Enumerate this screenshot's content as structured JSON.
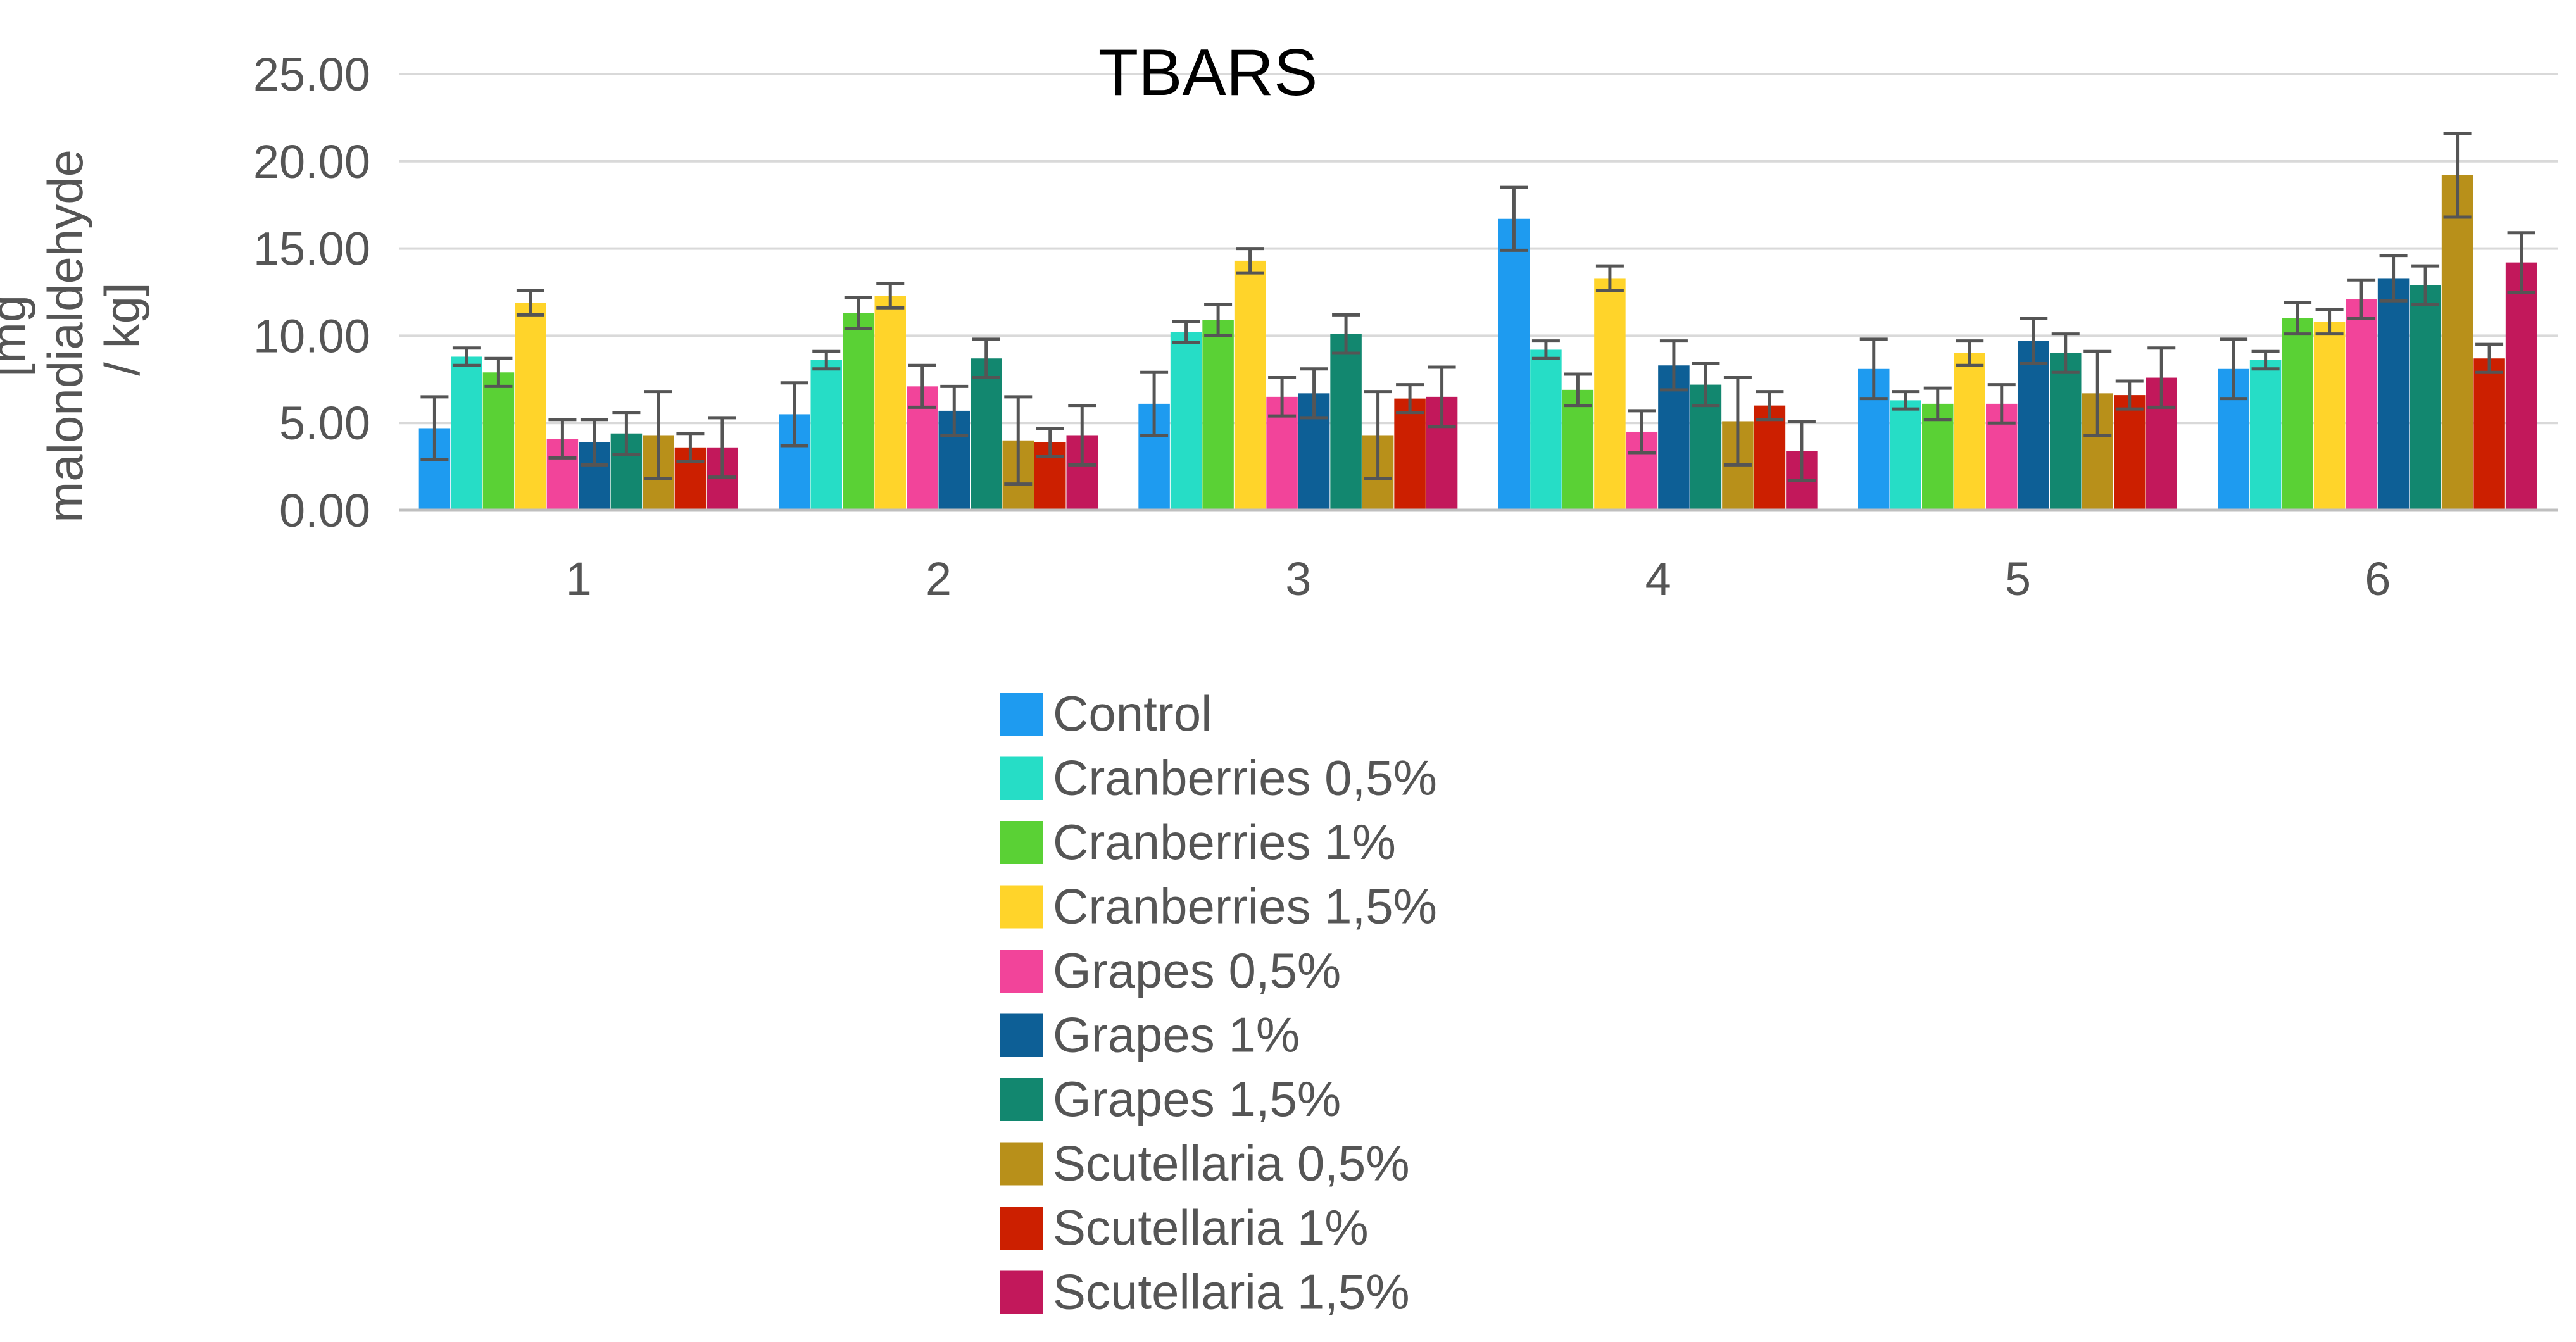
{
  "chart_data": {
    "type": "bar",
    "title": "TBARS",
    "ylabel_lines": [
      "[mg",
      "malondialdehyde",
      "/ kg]"
    ],
    "xlabel": "",
    "ylim": [
      0,
      25
    ],
    "yticks": [
      "0.00",
      "5.00",
      "10.00",
      "15.00",
      "20.00",
      "25.00"
    ],
    "grid": true,
    "legend_position": "bottom",
    "categories": [
      "1",
      "2",
      "3",
      "4",
      "5",
      "6"
    ],
    "series": [
      {
        "name": "Control",
        "color": "#1E9BF0",
        "values": [
          4.7,
          5.5,
          6.1,
          16.7,
          8.1,
          8.1
        ],
        "errors": [
          1.8,
          1.8,
          1.8,
          1.8,
          1.7,
          1.7
        ]
      },
      {
        "name": "Cranberries 0,5%",
        "color": "#26DDC6",
        "values": [
          8.8,
          8.6,
          10.2,
          9.2,
          6.3,
          8.6
        ],
        "errors": [
          0.5,
          0.5,
          0.6,
          0.5,
          0.5,
          0.5
        ]
      },
      {
        "name": "Cranberries 1%",
        "color": "#5AD135",
        "values": [
          7.9,
          11.3,
          10.9,
          6.9,
          6.1,
          11.0
        ],
        "errors": [
          0.8,
          0.9,
          0.9,
          0.9,
          0.9,
          0.9
        ]
      },
      {
        "name": "Cranberries 1,5%",
        "color": "#FFD42A",
        "values": [
          11.9,
          12.3,
          14.3,
          13.3,
          9.0,
          10.8
        ],
        "errors": [
          0.7,
          0.7,
          0.7,
          0.7,
          0.7,
          0.7
        ]
      },
      {
        "name": "Grapes 0,5%",
        "color": "#F2449A",
        "values": [
          4.1,
          7.1,
          6.5,
          4.5,
          6.1,
          12.1
        ],
        "errors": [
          1.1,
          1.2,
          1.1,
          1.2,
          1.1,
          1.1
        ]
      },
      {
        "name": "Grapes 1%",
        "color": "#0D5F96",
        "values": [
          3.9,
          5.7,
          6.7,
          8.3,
          9.7,
          13.3
        ],
        "errors": [
          1.3,
          1.4,
          1.4,
          1.4,
          1.3,
          1.3
        ]
      },
      {
        "name": "Grapes 1,5%",
        "color": "#12876F",
        "values": [
          4.4,
          8.7,
          10.1,
          7.2,
          9.0,
          12.9
        ],
        "errors": [
          1.2,
          1.1,
          1.1,
          1.2,
          1.1,
          1.1
        ]
      },
      {
        "name": "Scutellaria 0,5%",
        "color": "#B8901A",
        "values": [
          4.3,
          4.0,
          4.3,
          5.1,
          6.7,
          19.2
        ],
        "errors": [
          2.5,
          2.5,
          2.5,
          2.5,
          2.4,
          2.4
        ]
      },
      {
        "name": "Scutellaria 1%",
        "color": "#CC1F00",
        "values": [
          3.6,
          3.9,
          6.4,
          6.0,
          6.6,
          8.7
        ],
        "errors": [
          0.8,
          0.8,
          0.8,
          0.8,
          0.8,
          0.8
        ]
      },
      {
        "name": "Scutellaria 1,5%",
        "color": "#C2185B",
        "values": [
          3.6,
          4.3,
          6.5,
          3.4,
          7.6,
          14.2
        ],
        "errors": [
          1.7,
          1.7,
          1.7,
          1.7,
          1.7,
          1.7
        ]
      }
    ]
  }
}
